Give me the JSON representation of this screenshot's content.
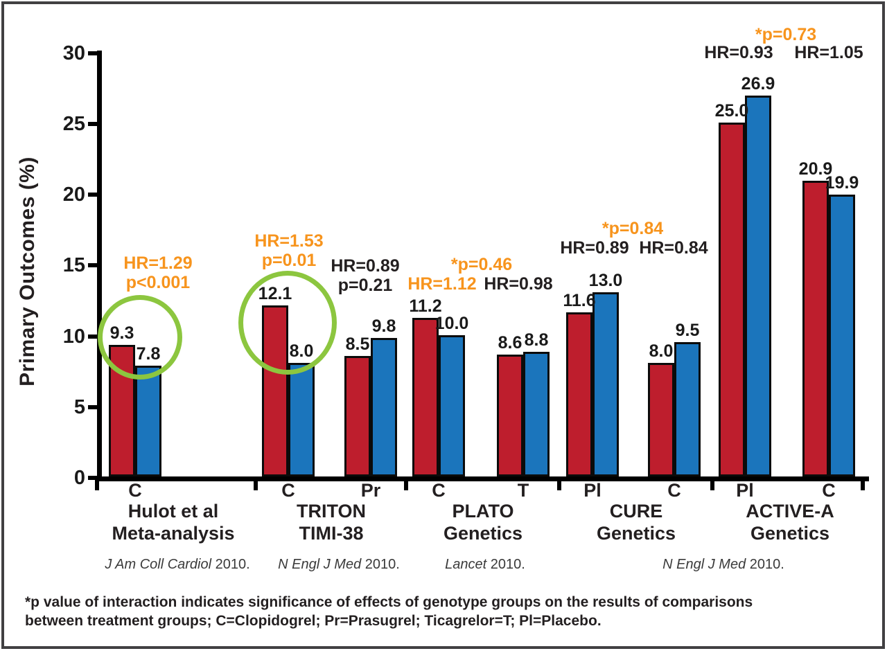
{
  "figure": {
    "footnote_line1": "*p value of interaction indicates significance of effects of genotype groups on the results of comparisons",
    "footnote_line2": "between treatment groups; C=Clopidogrel; Pr=Prasugrel; Ticagrelor=T; Pl=Placebo."
  },
  "colors": {
    "red": "#BE1E2D",
    "blue": "#1B75BC",
    "orange": "#F7941D",
    "green": "#8CC63F",
    "text": "#231F20"
  },
  "chart_data": {
    "type": "bar",
    "title": "",
    "xlabel": "",
    "ylabel": "Primary Outcomes (%)",
    "ylim": [
      0,
      30
    ],
    "yticks": [
      0,
      5,
      10,
      15,
      20,
      25,
      30
    ],
    "grid": false,
    "legend": "none",
    "series": [
      {
        "key": "red",
        "color": "#BE1E2D"
      },
      {
        "key": "blue",
        "color": "#1B75BC"
      }
    ],
    "groups": [
      {
        "name_lines": [
          "Hulot et al",
          "Meta-analysis"
        ],
        "pairs": [
          {
            "tick": "C",
            "red": 9.3,
            "blue": 7.8,
            "red_label": "9.3",
            "blue_label": "7.8",
            "circled": true
          }
        ],
        "annotations": [
          {
            "lines": [
              "HR=1.29",
              "p<0.001"
            ],
            "color": "orange"
          }
        ]
      },
      {
        "name_lines": [
          "TRITON",
          "TIMI-38"
        ],
        "pairs": [
          {
            "tick": "C",
            "red": 12.1,
            "blue": 8.0,
            "red_label": "12.1",
            "blue_label": "8.0",
            "circled": true
          },
          {
            "tick": "Pr",
            "red": 8.5,
            "blue": 9.8,
            "red_label": "8.5",
            "blue_label": "9.8",
            "circled": false
          }
        ],
        "annotations": [
          {
            "lines": [
              "HR=1.53",
              "p=0.01"
            ],
            "color": "orange"
          },
          {
            "lines": [
              "HR=0.89",
              "p=0.21"
            ],
            "color": "black"
          }
        ]
      },
      {
        "name_lines": [
          "PLATO",
          "Genetics"
        ],
        "pairs": [
          {
            "tick": "C",
            "red": 11.2,
            "blue": 10.0,
            "red_label": "11.2",
            "blue_label": "10.0",
            "circled": false
          },
          {
            "tick": "T",
            "red": 8.6,
            "blue": 8.8,
            "red_label": "8.6",
            "blue_label": "8.8",
            "circled": false
          }
        ],
        "annotations": [
          {
            "lines": [
              "*p=0.46"
            ],
            "color": "orange"
          },
          {
            "lines": [
              "HR=1.12"
            ],
            "color": "orange"
          },
          {
            "lines": [
              "HR=0.98"
            ],
            "color": "black"
          }
        ]
      },
      {
        "name_lines": [
          "CURE",
          "Genetics"
        ],
        "pairs": [
          {
            "tick": "Pl",
            "red": 11.6,
            "blue": 13.0,
            "red_label": "11.6",
            "blue_label": "13.0",
            "circled": false
          },
          {
            "tick": "C",
            "red": 8.0,
            "blue": 9.5,
            "red_label": "8.0",
            "blue_label": "9.5",
            "circled": false
          }
        ],
        "annotations": [
          {
            "lines": [
              "*p=0.84"
            ],
            "color": "orange"
          },
          {
            "lines": [
              "HR=0.89"
            ],
            "color": "black"
          },
          {
            "lines": [
              "HR=0.84"
            ],
            "color": "black"
          }
        ]
      },
      {
        "name_lines": [
          "ACTIVE-A",
          "Genetics"
        ],
        "pairs": [
          {
            "tick": "Pl",
            "red": 25.0,
            "blue": 26.9,
            "red_label": "25.0",
            "blue_label": "26.9",
            "circled": false
          },
          {
            "tick": "C",
            "red": 20.9,
            "blue": 19.9,
            "red_label": "20.9",
            "blue_label": "19.9",
            "circled": false
          }
        ],
        "annotations": [
          {
            "lines": [
              "*p=0.73"
            ],
            "color": "orange"
          },
          {
            "lines": [
              "HR=0.93"
            ],
            "color": "black"
          },
          {
            "lines": [
              "HR=1.05"
            ],
            "color": "black"
          }
        ]
      }
    ],
    "citations": [
      {
        "journal": "J Am Coll Cardiol",
        "year": "2010."
      },
      {
        "journal": "N Engl J Med",
        "year": "2010."
      },
      {
        "journal": "Lancet",
        "year": "2010."
      },
      {
        "journal": "N Engl J Med",
        "year": "2010."
      }
    ]
  }
}
